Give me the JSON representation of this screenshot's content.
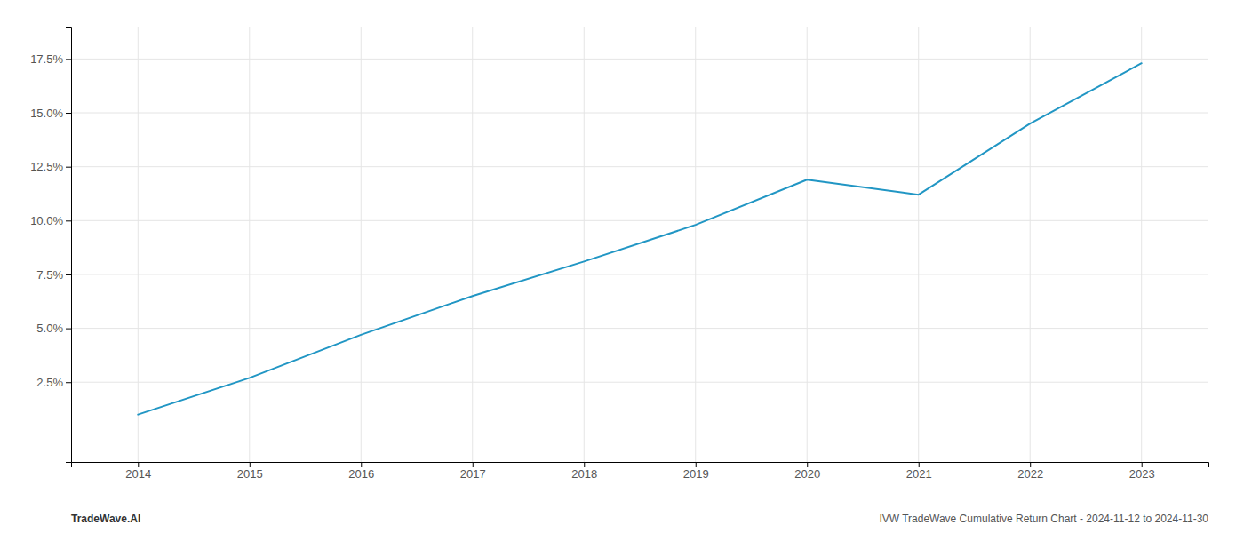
{
  "chart_data": {
    "type": "line",
    "x": [
      2014,
      2015,
      2016,
      2017,
      2018,
      2019,
      2020,
      2021,
      2022,
      2023
    ],
    "values": [
      1.0,
      2.7,
      4.7,
      6.5,
      8.1,
      9.8,
      11.9,
      11.2,
      14.5,
      17.3
    ],
    "color": "#2196c4",
    "xlim": [
      2013.4,
      2023.6
    ],
    "ylim": [
      -1.2,
      19.0
    ],
    "xticks": [
      2014,
      2015,
      2016,
      2017,
      2018,
      2019,
      2020,
      2021,
      2022,
      2023
    ],
    "yticks": [
      {
        "value": 2.5,
        "label": "2.5%"
      },
      {
        "value": 5.0,
        "label": "5.0%"
      },
      {
        "value": 7.5,
        "label": "7.5%"
      },
      {
        "value": 10.0,
        "label": "10.0%"
      },
      {
        "value": 12.5,
        "label": "12.5%"
      },
      {
        "value": 15.0,
        "label": "15.0%"
      },
      {
        "value": 17.5,
        "label": "17.5%"
      }
    ],
    "grid": true,
    "annotations": [
      "TradeWave.AI",
      "IVW TradeWave Cumulative Return Chart - 2024-11-12 to 2024-11-30"
    ]
  }
}
